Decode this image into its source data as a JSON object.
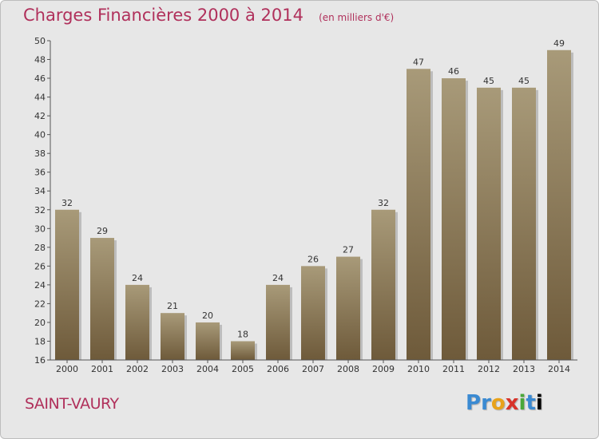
{
  "chart_data": {
    "type": "bar",
    "title": "Charges Financières 2000 à 2014",
    "subtitle": "(en milliers d'€)",
    "categories": [
      "2000",
      "2001",
      "2002",
      "2003",
      "2004",
      "2005",
      "2006",
      "2007",
      "2008",
      "2009",
      "2010",
      "2011",
      "2012",
      "2013",
      "2014"
    ],
    "values": [
      32,
      29,
      24,
      21,
      20,
      18,
      24,
      26,
      27,
      32,
      47,
      46,
      45,
      45,
      49
    ],
    "ylim": [
      16,
      50
    ],
    "yticks": [
      16,
      18,
      20,
      22,
      24,
      26,
      28,
      30,
      32,
      34,
      36,
      38,
      40,
      42,
      44,
      46,
      48,
      50
    ],
    "grid": false,
    "data_labels": true,
    "bar_color_top": "#a89a79",
    "bar_color_bottom": "#6e5a3a"
  },
  "footer": {
    "place": "SAINT-VAURY",
    "brand": "Proxiti"
  },
  "colors": {
    "title": "#b0305b",
    "background": "#e7e7e7",
    "axis": "#444444"
  }
}
